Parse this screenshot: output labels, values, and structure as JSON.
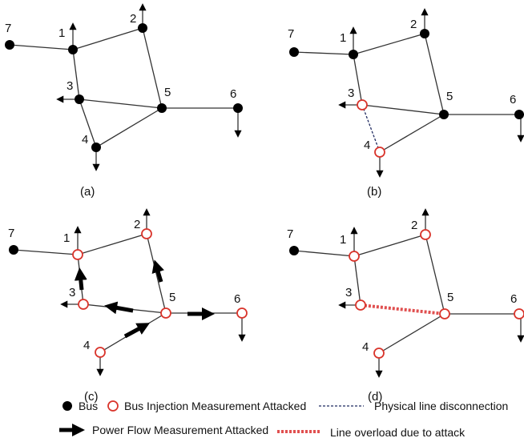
{
  "colors": {
    "attacked": "#d9342b",
    "bus": "#000000",
    "line": "#333333",
    "dashed": "#1f2a60"
  },
  "panels": [
    {
      "caption": "(a)",
      "buses": [
        {
          "id": "1",
          "label": "1",
          "attacked": false
        },
        {
          "id": "2",
          "label": "2",
          "attacked": false
        },
        {
          "id": "3",
          "label": "3",
          "attacked": false
        },
        {
          "id": "4",
          "label": "4",
          "attacked": false
        },
        {
          "id": "5",
          "label": "5",
          "attacked": false
        },
        {
          "id": "6",
          "label": "6",
          "attacked": false
        },
        {
          "id": "7",
          "label": "7",
          "attacked": false
        }
      ]
    },
    {
      "caption": "(b)",
      "buses": [
        {
          "id": "1",
          "label": "1",
          "attacked": false
        },
        {
          "id": "2",
          "label": "2",
          "attacked": false
        },
        {
          "id": "3",
          "label": "3",
          "attacked": true
        },
        {
          "id": "4",
          "label": "4",
          "attacked": true
        },
        {
          "id": "5",
          "label": "5",
          "attacked": false
        },
        {
          "id": "6",
          "label": "6",
          "attacked": false
        },
        {
          "id": "7",
          "label": "7",
          "attacked": false
        }
      ]
    },
    {
      "caption": "(c)",
      "buses": [
        {
          "id": "1",
          "label": "1",
          "attacked": true
        },
        {
          "id": "2",
          "label": "2",
          "attacked": true
        },
        {
          "id": "3",
          "label": "3",
          "attacked": true
        },
        {
          "id": "4",
          "label": "4",
          "attacked": true
        },
        {
          "id": "5",
          "label": "5",
          "attacked": true
        },
        {
          "id": "6",
          "label": "6",
          "attacked": true
        },
        {
          "id": "7",
          "label": "7",
          "attacked": false
        }
      ]
    },
    {
      "caption": "(d)",
      "buses": [
        {
          "id": "1",
          "label": "1",
          "attacked": true
        },
        {
          "id": "2",
          "label": "2",
          "attacked": true
        },
        {
          "id": "3",
          "label": "3",
          "attacked": true
        },
        {
          "id": "4",
          "label": "4",
          "attacked": true
        },
        {
          "id": "5",
          "label": "5",
          "attacked": true
        },
        {
          "id": "6",
          "label": "6",
          "attacked": true
        },
        {
          "id": "7",
          "label": "7",
          "attacked": false
        }
      ]
    }
  ],
  "legend": {
    "bus": "Bus",
    "bus_injection_attacked": "Bus Injection Measurement Attacked",
    "physical_disconnection": "Physical line disconnection",
    "power_flow_attacked": "Power Flow Measurement Attacked",
    "line_overload": "Line overload due to attack"
  }
}
